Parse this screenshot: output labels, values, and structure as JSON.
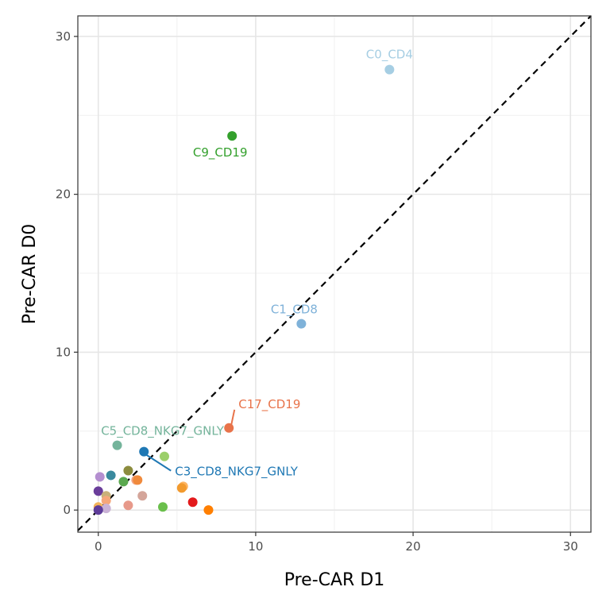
{
  "chart_data": {
    "type": "scatter",
    "title": "",
    "xlabel": "Pre-CAR D1",
    "ylabel": "Pre-CAR D0",
    "xlim": [
      -1.3,
      31.3
    ],
    "ylim": [
      -1.4,
      31.3
    ],
    "xticks": [
      0,
      10,
      20,
      30
    ],
    "yticks": [
      0,
      10,
      20,
      30
    ],
    "minor_ticks": [
      5,
      15,
      25
    ],
    "grid": true,
    "legend": "none",
    "reference_line": {
      "type": "identity",
      "style": "dashed",
      "color": "#000000"
    },
    "points": [
      {
        "x": 18.5,
        "y": 27.9,
        "color": "#a6cee3",
        "label": "C0_CD4"
      },
      {
        "x": 12.9,
        "y": 11.8,
        "color": "#7fb2d9",
        "label": "C1_CD8"
      },
      {
        "x": 8.5,
        "y": 23.7,
        "color": "#33a02c",
        "label": "C9_CD19"
      },
      {
        "x": 8.3,
        "y": 5.2,
        "color": "#e8734a",
        "label": "C17_CD19"
      },
      {
        "x": 1.2,
        "y": 4.1,
        "color": "#74b49b",
        "label": "C5_CD8_NKG7_GNLY"
      },
      {
        "x": 2.9,
        "y": 3.7,
        "color": "#1f78b4",
        "label": "C3_CD8_NKG7_GNLY"
      },
      {
        "x": 4.2,
        "y": 3.4,
        "color": "#9bcf6a",
        "label": ""
      },
      {
        "x": 1.9,
        "y": 2.5,
        "color": "#8c8c3e",
        "label": ""
      },
      {
        "x": 0.8,
        "y": 2.2,
        "color": "#3a8a9e",
        "label": ""
      },
      {
        "x": 0.1,
        "y": 2.1,
        "color": "#b48fd0",
        "label": ""
      },
      {
        "x": 2.4,
        "y": 1.9,
        "color": "#f4a582",
        "label": ""
      },
      {
        "x": 2.5,
        "y": 1.9,
        "color": "#f08a3c",
        "label": ""
      },
      {
        "x": 1.6,
        "y": 1.8,
        "color": "#5aa84f",
        "label": ""
      },
      {
        "x": 5.4,
        "y": 1.5,
        "color": "#fdb462",
        "label": ""
      },
      {
        "x": 5.3,
        "y": 1.4,
        "color": "#f29a2e",
        "label": ""
      },
      {
        "x": 0.0,
        "y": 1.2,
        "color": "#6a3d9a",
        "label": ""
      },
      {
        "x": 2.8,
        "y": 0.9,
        "color": "#d4a59a",
        "label": ""
      },
      {
        "x": 0.5,
        "y": 0.9,
        "color": "#c9b17a",
        "label": ""
      },
      {
        "x": 0.5,
        "y": 0.6,
        "color": "#f6a77a",
        "label": ""
      },
      {
        "x": 6.0,
        "y": 0.5,
        "color": "#e31a1c",
        "label": ""
      },
      {
        "x": 1.9,
        "y": 0.3,
        "color": "#e7998a",
        "label": ""
      },
      {
        "x": 4.1,
        "y": 0.2,
        "color": "#6abf4b",
        "label": ""
      },
      {
        "x": 0.0,
        "y": 0.2,
        "color": "#f2b35a",
        "label": ""
      },
      {
        "x": 7.0,
        "y": 0.0,
        "color": "#ff7f00",
        "label": ""
      },
      {
        "x": 0.5,
        "y": 0.1,
        "color": "#cab2d6",
        "label": ""
      },
      {
        "x": 0.0,
        "y": 0.0,
        "color": "#5e3c99",
        "label": ""
      }
    ]
  }
}
